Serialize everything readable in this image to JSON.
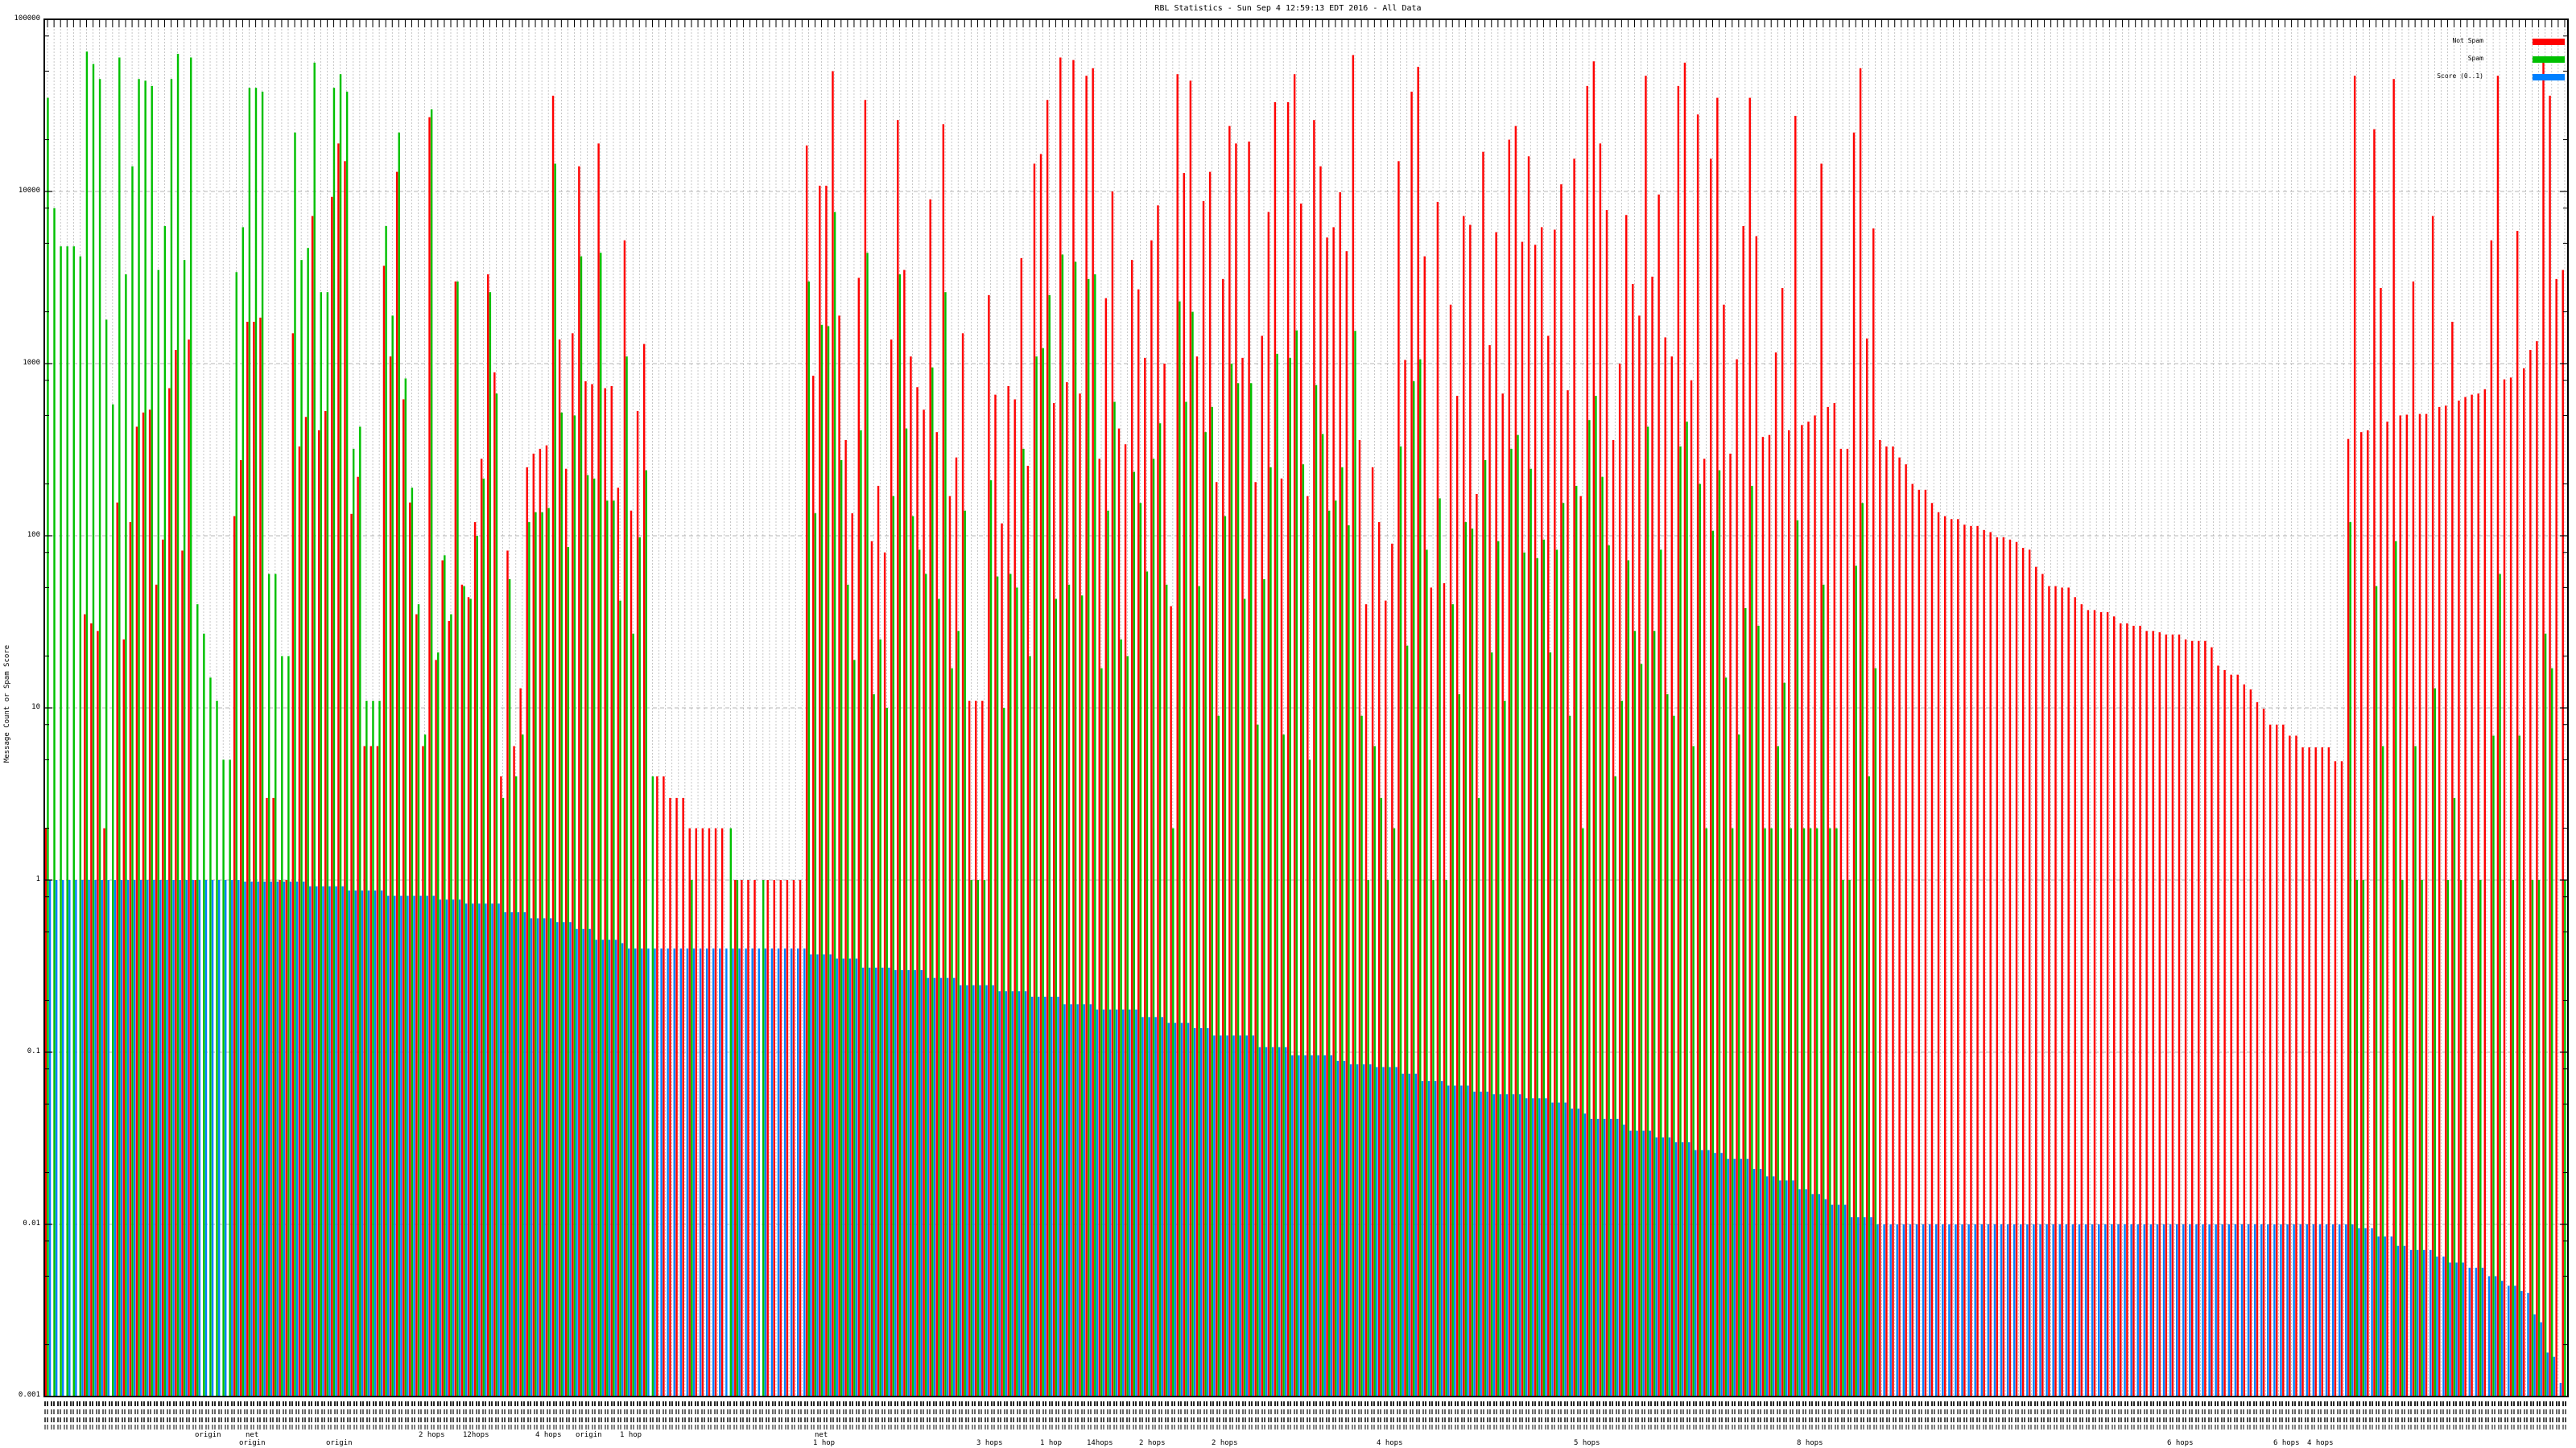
{
  "chart_data": {
    "type": "bar",
    "title": "RBL Statistics - Sun Sep  4 12:59:13 EDT 2016 - All Data",
    "ylabel": "Message Count or Spam Score",
    "xlabel": "",
    "yscale": "log",
    "ylim": [
      0.001,
      100000
    ],
    "yticks": [
      "100000",
      "10000",
      "1000",
      "100",
      "10",
      "1",
      "0.1",
      "0.01",
      "0.001"
    ],
    "grid": true,
    "legend_position": "top-right",
    "legend": [
      "Not Spam",
      "Spam",
      "Score (0..1)"
    ],
    "colors": {
      "not_spam": "#ff0000",
      "spam": "#00c000",
      "score": "#0080ff"
    },
    "series": [
      {
        "name": "Not Spam",
        "values": [
          2,
          0,
          0,
          0,
          0,
          0,
          35,
          31,
          28,
          2,
          0,
          156,
          25,
          120,
          430,
          520,
          540,
          52,
          95,
          720,
          1200,
          82,
          1380,
          1,
          0,
          0,
          0,
          0,
          0,
          130,
          275,
          1750,
          1750,
          1850,
          3,
          3,
          1,
          1,
          1500,
          330,
          490,
          7200,
          410,
          530,
          9300,
          19000,
          15000,
          134,
          220,
          6,
          6,
          6,
          3700,
          1100,
          13000,
          620,
          156,
          35,
          6,
          27000,
          19,
          72,
          32,
          3000,
          52,
          44,
          120,
          280,
          3300,
          890,
          4,
          82,
          6,
          13,
          250,
          300,
          320,
          335,
          36000,
          1380,
          245,
          1500,
          14000,
          790,
          760,
          19000,
          720,
          740,
          190,
          5200,
          140,
          530,
          1300,
          0,
          4,
          4,
          3,
          3,
          3,
          2,
          2,
          2,
          2,
          2,
          2,
          0,
          1,
          1,
          1,
          1,
          0,
          1,
          1,
          1,
          1,
          1,
          1,
          18500,
          850,
          10800,
          10800,
          50000,
          1900,
          360,
          135,
          3150,
          34000,
          93,
          195,
          80,
          1380,
          26000,
          3500,
          1100,
          730,
          540,
          9000,
          400,
          24600,
          170,
          285,
          1500,
          11,
          11,
          11,
          2500,
          660,
          118,
          740,
          620,
          4100,
          255,
          14500,
          16500,
          34000,
          590,
          60000,
          780,
          58000,
          670,
          47000,
          52000,
          280,
          2400,
          10000,
          420,
          340,
          4000,
          2700,
          1080,
          5200,
          8300,
          1000,
          39,
          48000,
          12800,
          44000,
          1100,
          8800,
          13000,
          205,
          3100,
          24000,
          19000,
          1080,
          19500,
          205,
          1450,
          7600,
          33000,
          215,
          33000,
          48000,
          8500,
          170,
          26000,
          14000,
          5400,
          6200,
          9900,
          4500,
          62000,
          360,
          40,
          250,
          120,
          42,
          90,
          15000,
          1050,
          38000,
          53000,
          4200,
          50,
          8700,
          53,
          2200,
          650,
          7200,
          6400,
          175,
          17000,
          1280,
          5800,
          670,
          20000,
          24000,
          5100,
          16000,
          4900,
          6200,
          1450,
          6000,
          11000,
          700,
          15500,
          170,
          41000,
          57000,
          19000,
          7800,
          360,
          1000,
          7300,
          2900,
          1900,
          47000,
          3200,
          9600,
          1420,
          1100,
          41000,
          56000,
          800,
          28000,
          280,
          15500,
          35000,
          2200,
          300,
          1060,
          6300,
          35000,
          5500,
          375,
          385,
          1160,
          2750,
          410,
          27500,
          440,
          460,
          500,
          14500,
          560,
          590,
          320,
          320,
          22000,
          52000,
          1400,
          6100,
          360,
          330,
          330,
          285,
          260,
          200,
          185,
          185,
          155,
          137,
          130,
          125,
          125,
          116,
          114,
          114,
          108,
          105,
          98,
          98,
          95,
          92,
          85,
          83,
          66,
          60,
          51,
          51,
          50,
          50,
          44,
          40,
          37,
          37,
          36,
          36,
          34,
          31,
          31,
          30,
          30,
          28,
          28,
          27.5,
          26.7,
          26.7,
          26.7,
          25,
          24.5,
          24.5,
          24.5,
          22.5,
          17.6,
          16.6,
          15.6,
          15.6,
          13.7,
          12.8,
          10.8,
          9.9,
          8,
          8,
          8,
          6.9,
          6.9,
          5.9,
          5.9,
          5.9,
          5.9,
          5.9,
          4.9,
          4.9,
          365,
          47000,
          400,
          410,
          23000,
          2750,
          460,
          45000,
          500,
          505,
          3000,
          510,
          510,
          7200,
          560,
          570,
          1750,
          610,
          640,
          660,
          670,
          710,
          5200,
          47000,
          810,
          830,
          5900,
          940,
          1200,
          1350,
          58000,
          36000,
          3100,
          3500
        ]
      },
      {
        "name": "Spam",
        "values": [
          35000,
          8000,
          4800,
          4800,
          4800,
          4200,
          65000,
          55000,
          45000,
          1800,
          580,
          60000,
          3300,
          14000,
          45000,
          44000,
          41000,
          3500,
          6300,
          45000,
          63000,
          4000,
          60000,
          40,
          27,
          15,
          11,
          5,
          5,
          3400,
          6200,
          40000,
          40000,
          38000,
          60,
          60,
          20,
          20,
          22000,
          4000,
          4700,
          56000,
          2600,
          2600,
          40000,
          48000,
          38000,
          320,
          430,
          11,
          11,
          11,
          6300,
          1900,
          22000,
          820,
          190,
          40,
          7,
          30000,
          21,
          77,
          35,
          3000,
          51,
          43,
          100,
          215,
          2600,
          670,
          3,
          56,
          4,
          7,
          120,
          137,
          137,
          145,
          14500,
          520,
          86,
          500,
          4200,
          225,
          215,
          4400,
          160,
          160,
          42,
          1100,
          27,
          98,
          240,
          4,
          0,
          0,
          0,
          0,
          0,
          1,
          0,
          0,
          0,
          0,
          0,
          2,
          1,
          0,
          0,
          0,
          1,
          0,
          0,
          0,
          0,
          0,
          0,
          3000,
          135,
          1680,
          1650,
          7600,
          275,
          52,
          19,
          410,
          4400,
          12,
          25,
          10,
          170,
          3300,
          420,
          130,
          83,
          60,
          950,
          43,
          2600,
          17,
          28,
          140,
          1,
          1,
          1,
          210,
          58,
          10,
          60,
          50,
          320,
          20,
          1100,
          1230,
          2500,
          43,
          4300,
          52,
          3900,
          45,
          3100,
          3300,
          17,
          140,
          600,
          25,
          20,
          235,
          155,
          62,
          280,
          450,
          52,
          2,
          2300,
          600,
          2000,
          51,
          400,
          560,
          9,
          130,
          1000,
          770,
          43,
          770,
          8,
          56,
          250,
          1140,
          7,
          1080,
          1560,
          260,
          5,
          750,
          390,
          140,
          160,
          250,
          115,
          1550,
          9,
          1,
          6,
          3,
          1,
          2,
          330,
          23,
          790,
          1060,
          83,
          1,
          165,
          1,
          40,
          12,
          120,
          110,
          3,
          275,
          21,
          93,
          11,
          320,
          385,
          80,
          245,
          74,
          95,
          21,
          83,
          155,
          9,
          195,
          2,
          470,
          650,
          220,
          88,
          4,
          11,
          72,
          28,
          18,
          430,
          28,
          83,
          12,
          9,
          330,
          460,
          6,
          200,
          2,
          107,
          240,
          15,
          2,
          7,
          38,
          195,
          30,
          2,
          2,
          6,
          14,
          2,
          123,
          2,
          2,
          2,
          52,
          2,
          2,
          1,
          1,
          67,
          155,
          4,
          17,
          0,
          0,
          0,
          0,
          0,
          0,
          0,
          0,
          0,
          0,
          0,
          0,
          0,
          0,
          0,
          0,
          0,
          0,
          0,
          0,
          0,
          0,
          0,
          0,
          0,
          0,
          0,
          0,
          0,
          0,
          0,
          0,
          0,
          0,
          0,
          0,
          0,
          0,
          0,
          0,
          0,
          0,
          0,
          0,
          0,
          0,
          0,
          0,
          0,
          0,
          0,
          0,
          0,
          0,
          0,
          0,
          0,
          0,
          0,
          0,
          0,
          0,
          0,
          0,
          0,
          0,
          0,
          0,
          0,
          0,
          0,
          0,
          120,
          1,
          1,
          0,
          51,
          6,
          0,
          93,
          1,
          0,
          6,
          1,
          0,
          13,
          0,
          1,
          3,
          1,
          0,
          0,
          1,
          0,
          6.9,
          60,
          0,
          1,
          6.9,
          0,
          1,
          1,
          27,
          17,
          0,
          1
        ]
      },
      {
        "name": "Score (0..1)",
        "values": [
          1,
          1,
          1,
          1,
          1,
          1,
          1,
          1,
          1,
          1,
          1,
          1,
          1,
          1,
          1,
          1,
          1,
          1,
          1,
          1,
          1,
          1,
          1,
          1,
          1,
          1,
          1,
          1,
          1,
          1,
          0.98,
          0.98,
          0.98,
          0.98,
          0.98,
          0.98,
          0.98,
          0.98,
          0.98,
          0.98,
          0.92,
          0.92,
          0.92,
          0.92,
          0.92,
          0.92,
          0.87,
          0.87,
          0.87,
          0.87,
          0.87,
          0.87,
          0.81,
          0.81,
          0.81,
          0.81,
          0.81,
          0.81,
          0.81,
          0.81,
          0.77,
          0.77,
          0.77,
          0.77,
          0.73,
          0.73,
          0.73,
          0.73,
          0.73,
          0.73,
          0.65,
          0.65,
          0.65,
          0.65,
          0.6,
          0.6,
          0.6,
          0.6,
          0.57,
          0.57,
          0.57,
          0.52,
          0.52,
          0.52,
          0.45,
          0.45,
          0.45,
          0.45,
          0.43,
          0.4,
          0.4,
          0.4,
          0.4,
          0.4,
          0.4,
          0.4,
          0.4,
          0.4,
          0.4,
          0.4,
          0.4,
          0.4,
          0.4,
          0.4,
          0.4,
          0.4,
          0.4,
          0.4,
          0.4,
          0.4,
          0.4,
          0.4,
          0.4,
          0.4,
          0.4,
          0.4,
          0.4,
          0.37,
          0.37,
          0.37,
          0.37,
          0.35,
          0.35,
          0.35,
          0.35,
          0.31,
          0.31,
          0.31,
          0.31,
          0.31,
          0.3,
          0.3,
          0.3,
          0.3,
          0.3,
          0.27,
          0.27,
          0.27,
          0.27,
          0.27,
          0.245,
          0.245,
          0.245,
          0.245,
          0.245,
          0.245,
          0.226,
          0.226,
          0.226,
          0.226,
          0.226,
          0.21,
          0.21,
          0.21,
          0.21,
          0.21,
          0.19,
          0.19,
          0.19,
          0.19,
          0.19,
          0.177,
          0.177,
          0.177,
          0.177,
          0.177,
          0.177,
          0.177,
          0.16,
          0.16,
          0.16,
          0.16,
          0.148,
          0.148,
          0.148,
          0.148,
          0.138,
          0.138,
          0.138,
          0.125,
          0.125,
          0.125,
          0.125,
          0.125,
          0.125,
          0.125,
          0.107,
          0.107,
          0.107,
          0.107,
          0.107,
          0.096,
          0.096,
          0.096,
          0.096,
          0.096,
          0.096,
          0.096,
          0.089,
          0.089,
          0.085,
          0.085,
          0.085,
          0.085,
          0.082,
          0.082,
          0.082,
          0.082,
          0.075,
          0.075,
          0.075,
          0.068,
          0.068,
          0.068,
          0.068,
          0.064,
          0.064,
          0.064,
          0.064,
          0.059,
          0.059,
          0.059,
          0.057,
          0.057,
          0.057,
          0.057,
          0.057,
          0.054,
          0.054,
          0.054,
          0.054,
          0.051,
          0.051,
          0.051,
          0.047,
          0.047,
          0.044,
          0.041,
          0.041,
          0.041,
          0.041,
          0.041,
          0.038,
          0.035,
          0.035,
          0.035,
          0.035,
          0.032,
          0.032,
          0.032,
          0.03,
          0.03,
          0.03,
          0.027,
          0.027,
          0.027,
          0.026,
          0.026,
          0.024,
          0.024,
          0.024,
          0.024,
          0.021,
          0.021,
          0.019,
          0.019,
          0.018,
          0.018,
          0.018,
          0.016,
          0.016,
          0.015,
          0.015,
          0.014,
          0.013,
          0.013,
          0.013,
          0.011,
          0.011,
          0.011,
          0.011,
          0.01,
          0.01,
          0.01,
          0.01,
          0.01,
          0.01,
          0.01,
          0.01,
          0.01,
          0.01,
          0.01,
          0.01,
          0.01,
          0.01,
          0.01,
          0.01,
          0.01,
          0.01,
          0.01,
          0.01,
          0.01,
          0.01,
          0.01,
          0.01,
          0.01,
          0.01,
          0.01,
          0.01,
          0.01,
          0.01,
          0.01,
          0.01,
          0.01,
          0.01,
          0.01,
          0.01,
          0.01,
          0.01,
          0.01,
          0.01,
          0.01,
          0.01,
          0.01,
          0.01,
          0.01,
          0.01,
          0.01,
          0.01,
          0.01,
          0.01,
          0.01,
          0.01,
          0.01,
          0.01,
          0.01,
          0.01,
          0.01,
          0.01,
          0.01,
          0.01,
          0.01,
          0.01,
          0.01,
          0.01,
          0.01,
          0.01,
          0.01,
          0.01,
          0.01,
          0.01,
          0.01,
          0.01,
          0.01,
          0.01,
          0.0095,
          0.0095,
          0.0095,
          0.0085,
          0.0085,
          0.0085,
          0.0075,
          0.0075,
          0.0071,
          0.0071,
          0.0071,
          0.0071,
          0.0065,
          0.0065,
          0.006,
          0.006,
          0.006,
          0.0056,
          0.0056,
          0.0056,
          0.005,
          0.005,
          0.0047,
          0.0044,
          0.0044,
          0.0041,
          0.004,
          0.003,
          0.0027,
          0.0018,
          0.0017,
          0.0012,
          0.001
        ]
      }
    ],
    "x_label_fragments": [
      "origin",
      "net",
      "origin",
      "origin",
      "2 hops",
      "12hops",
      "4 hops",
      "origin",
      "1 hop",
      "net",
      "1 hop",
      "3 hops",
      "1 hop",
      "14hops",
      "2 hops",
      "2 hops",
      "4 hops",
      "5 hops",
      "8 hops",
      "6 hops",
      "6 hops",
      "4 hops"
    ]
  }
}
